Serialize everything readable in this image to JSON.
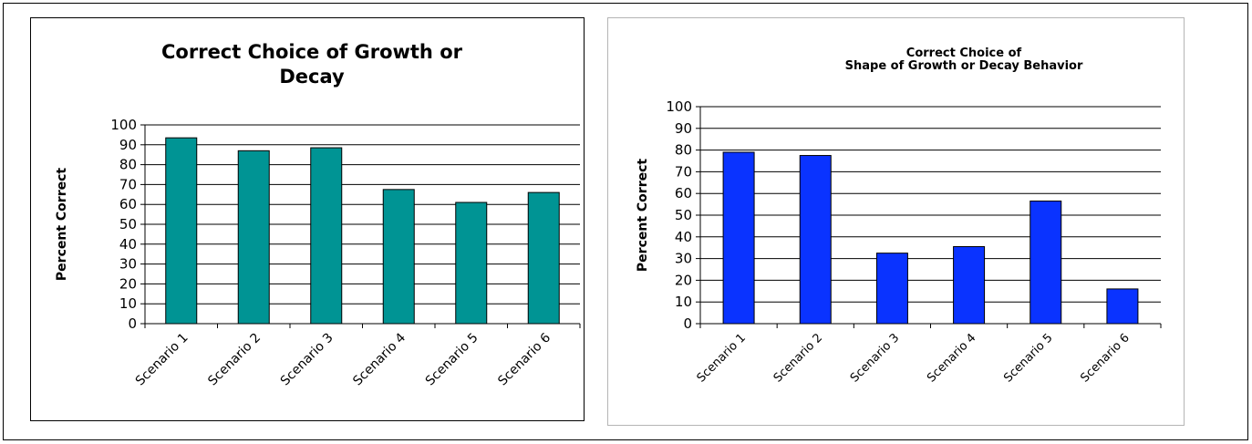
{
  "chart_data": [
    {
      "type": "bar",
      "title_lines": [
        "Correct Choice of Growth or",
        "Decay"
      ],
      "xlabel": "",
      "ylabel": "Percent Correct",
      "categories": [
        "Scenario 1",
        "Scenario 2",
        "Scenario 3",
        "Scenario 4",
        "Scenario 5",
        "Scenario 6"
      ],
      "values": [
        93.5,
        87,
        88.5,
        67.5,
        61,
        66
      ],
      "ylim": [
        0,
        100
      ],
      "yticks": [
        "0",
        "10",
        "20",
        "30",
        "40",
        "50",
        "60",
        "70",
        "80",
        "90",
        "100"
      ],
      "grid": true,
      "legend": "none",
      "bar_color": "#009494"
    },
    {
      "type": "bar",
      "title_lines": [
        "Correct Choice of",
        "Shape of Growth or Decay Behavior"
      ],
      "xlabel": "",
      "ylabel": "Percent Correct",
      "categories": [
        "Scenario 1",
        "Scenario 2",
        "Scenario 3",
        "Scenario 4",
        "Scenario 5",
        "Scenario 6"
      ],
      "values": [
        79,
        77.5,
        32.5,
        35.5,
        56.5,
        16
      ],
      "ylim": [
        0,
        100
      ],
      "yticks": [
        "0",
        "10",
        "20",
        "30",
        "40",
        "50",
        "60",
        "70",
        "80",
        "90",
        "100"
      ],
      "grid": true,
      "legend": "none",
      "bar_color": "#0a33ff"
    }
  ]
}
